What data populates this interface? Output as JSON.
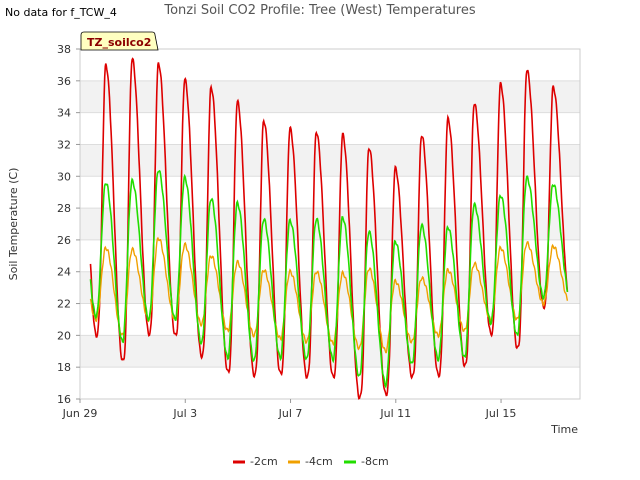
{
  "note": "No data for f_TCW_4",
  "chart_data": {
    "type": "line",
    "title": "Tonzi Soil CO2 Profile: Tree (West) Temperatures",
    "badge": "TZ_soilco2",
    "xlabel": "Time",
    "ylabel": "Soil Temperature (C)",
    "x_range_days": [
      0,
      19.0
    ],
    "ylim": [
      16,
      38
    ],
    "yticks": [
      16,
      18,
      20,
      22,
      24,
      26,
      28,
      30,
      32,
      34,
      36,
      38
    ],
    "xticks": [
      {
        "label": "Jun 29",
        "day": 0
      },
      {
        "label": "Jul 3",
        "day": 4
      },
      {
        "label": "Jul 7",
        "day": 8
      },
      {
        "label": "Jul 11",
        "day": 12
      },
      {
        "label": "Jul 15",
        "day": 16
      }
    ],
    "grid_bands": true,
    "legend_position": "bottom-center",
    "series": [
      {
        "name": "-2cm",
        "color": "#dd0000",
        "max": [
          37.0,
          37.4,
          37.1,
          36.1,
          35.6,
          34.7,
          33.5,
          33.0,
          32.8,
          32.6,
          31.8,
          30.5,
          32.6,
          33.6,
          34.6,
          35.8,
          36.7,
          35.6
        ],
        "min": [
          20.0,
          18.4,
          20.1,
          20.0,
          18.7,
          17.7,
          17.5,
          17.6,
          17.4,
          17.4,
          16.1,
          16.3,
          17.4,
          17.5,
          18.1,
          20.1,
          19.2,
          21.8
        ]
      },
      {
        "name": "-4cm",
        "color": "#f0a000",
        "max": [
          25.5,
          25.4,
          26.1,
          25.7,
          25.0,
          24.6,
          24.1,
          24.0,
          24.0,
          23.9,
          24.2,
          23.4,
          23.6,
          24.1,
          24.5,
          25.5,
          25.8,
          25.6
        ],
        "min": [
          21.0,
          20.0,
          21.0,
          21.0,
          20.7,
          20.3,
          20.0,
          19.8,
          19.6,
          19.5,
          19.2,
          19.0,
          19.6,
          20.0,
          20.3,
          21.0,
          21.0,
          22.0
        ]
      },
      {
        "name": "-8cm",
        "color": "#22dd00",
        "max": [
          29.6,
          29.7,
          30.4,
          29.9,
          28.6,
          28.3,
          27.3,
          27.2,
          27.3,
          27.4,
          26.5,
          25.9,
          26.9,
          26.8,
          28.2,
          28.8,
          29.9,
          29.5
        ],
        "min": [
          21.2,
          19.6,
          21.0,
          21.0,
          19.5,
          18.6,
          18.4,
          18.6,
          18.5,
          18.5,
          17.4,
          16.9,
          18.2,
          18.5,
          18.6,
          20.8,
          20.0,
          22.4
        ]
      }
    ]
  }
}
